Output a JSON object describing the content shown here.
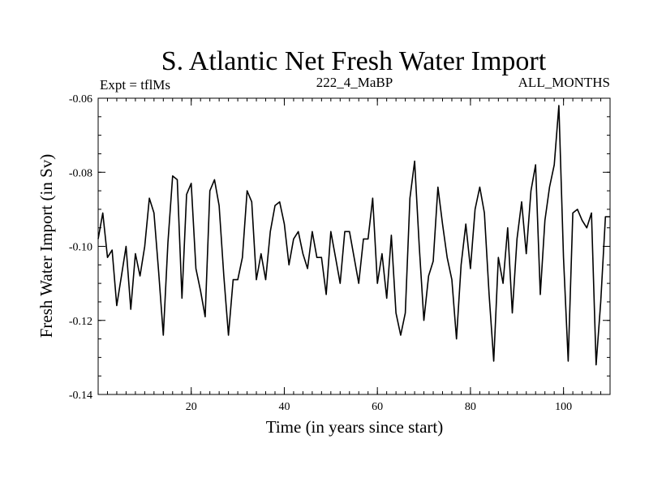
{
  "chart_data": {
    "type": "line",
    "title": "S. Atlantic Net Fresh Water Import",
    "subtitle_left": "Expt = tflMs",
    "subtitle_center": "222_4_MaBP",
    "subtitle_right": "ALL_MONTHS",
    "xlabel": "Time (in years since start)",
    "ylabel": "Fresh Water Import (in Sv)",
    "xlim": [
      0,
      110
    ],
    "ylim": [
      -0.14,
      -0.06
    ],
    "xticks": [
      20,
      40,
      60,
      80,
      100
    ],
    "xtick_labels": [
      "20",
      "40",
      "60",
      "80",
      "100"
    ],
    "yticks": [
      -0.14,
      -0.12,
      -0.1,
      -0.08,
      -0.06
    ],
    "ytick_labels": [
      "-0.14",
      "-0.12",
      "-0.10",
      "-0.08",
      "-0.06"
    ],
    "series": [
      {
        "name": "Fresh Water Import",
        "x": [
          0,
          1,
          2,
          3,
          4,
          5,
          6,
          7,
          8,
          9,
          10,
          11,
          12,
          13,
          14,
          15,
          16,
          17,
          18,
          19,
          20,
          21,
          22,
          23,
          24,
          25,
          26,
          27,
          28,
          29,
          30,
          31,
          32,
          33,
          34,
          35,
          36,
          37,
          38,
          39,
          40,
          41,
          42,
          43,
          44,
          45,
          46,
          47,
          48,
          49,
          50,
          51,
          52,
          53,
          54,
          55,
          56,
          57,
          58,
          59,
          60,
          61,
          62,
          63,
          64,
          65,
          66,
          67,
          68,
          69,
          70,
          71,
          72,
          73,
          74,
          75,
          76,
          77,
          78,
          79,
          80,
          81,
          82,
          83,
          84,
          85,
          86,
          87,
          88,
          89,
          90,
          91,
          92,
          93,
          94,
          95,
          96,
          97,
          98,
          99,
          100,
          101,
          102,
          103,
          104,
          105,
          106,
          107,
          108,
          109,
          110
        ],
        "values": [
          -0.098,
          -0.091,
          -0.103,
          -0.101,
          -0.116,
          -0.108,
          -0.1,
          -0.117,
          -0.102,
          -0.108,
          -0.1,
          -0.087,
          -0.091,
          -0.107,
          -0.124,
          -0.099,
          -0.081,
          -0.082,
          -0.114,
          -0.086,
          -0.083,
          -0.106,
          -0.112,
          -0.119,
          -0.085,
          -0.082,
          -0.089,
          -0.108,
          -0.124,
          -0.109,
          -0.109,
          -0.103,
          -0.085,
          -0.088,
          -0.109,
          -0.102,
          -0.109,
          -0.096,
          -0.089,
          -0.088,
          -0.094,
          -0.105,
          -0.098,
          -0.096,
          -0.102,
          -0.106,
          -0.096,
          -0.103,
          -0.103,
          -0.113,
          -0.096,
          -0.103,
          -0.11,
          -0.096,
          -0.096,
          -0.103,
          -0.11,
          -0.098,
          -0.098,
          -0.087,
          -0.11,
          -0.102,
          -0.114,
          -0.097,
          -0.118,
          -0.124,
          -0.118,
          -0.087,
          -0.077,
          -0.1,
          -0.12,
          -0.108,
          -0.104,
          -0.084,
          -0.094,
          -0.103,
          -0.109,
          -0.125,
          -0.105,
          -0.094,
          -0.106,
          -0.09,
          -0.084,
          -0.091,
          -0.113,
          -0.131,
          -0.103,
          -0.11,
          -0.095,
          -0.118,
          -0.098,
          -0.088,
          -0.102,
          -0.085,
          -0.078,
          -0.113,
          -0.093,
          -0.084,
          -0.078,
          -0.062,
          -0.103,
          -0.131,
          -0.091,
          -0.09,
          -0.093,
          -0.095,
          -0.091,
          -0.132,
          -0.115,
          -0.092,
          -0.092
        ]
      }
    ]
  }
}
